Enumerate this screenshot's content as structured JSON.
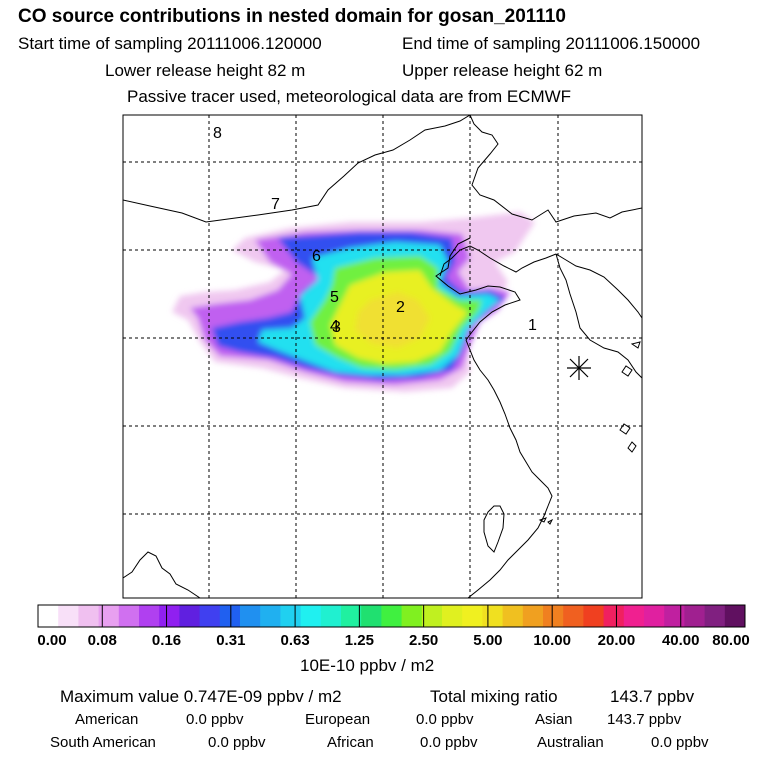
{
  "header": {
    "title": "CO  source contributions in nested domain for gosan_201110",
    "start_label": "Start time of sampling 20111006.120000",
    "end_label": "End time of sampling 20111006.150000",
    "lower_release": "Lower release height   82 m",
    "upper_release": "Upper release height   62 m",
    "tracer_note": "Passive tracer used, meteorological data are from ECMWF"
  },
  "map": {
    "trajectory_labels": [
      "8",
      "7",
      "6",
      "5",
      "2",
      "4",
      "3",
      "1"
    ],
    "receptor": "gosan station"
  },
  "colorbar": {
    "tick_labels": [
      "0.00",
      "0.08",
      "0.16",
      "0.31",
      "0.63",
      "1.25",
      "2.50",
      "5.00",
      "10.00",
      "20.00",
      "40.00",
      "80.00"
    ],
    "units": "10E-10 ppbv / m2",
    "colors": [
      "#ffffff",
      "#f8e0f8",
      "#f0c0f0",
      "#e8a0f0",
      "#d070f0",
      "#b040f0",
      "#9020f0",
      "#6020e0",
      "#4040f0",
      "#2060f0",
      "#2090f0",
      "#20b0f0",
      "#20d0f0",
      "#20f0f0",
      "#20f0d0",
      "#20f0a0",
      "#20e070",
      "#40f040",
      "#80f020",
      "#c0f020",
      "#e0f020",
      "#f0f020",
      "#f0e020",
      "#f0c020",
      "#f0a020",
      "#f08020",
      "#f06020",
      "#f04020",
      "#f02060",
      "#f02090",
      "#e020a0",
      "#c020a0",
      "#a02090",
      "#802080",
      "#601060"
    ]
  },
  "stats": {
    "max_label": "Maximum value  0.747E-09 ppbv / m2",
    "total_label": "Total mixing ratio",
    "total_value": "143.7 ppbv",
    "american_label": "American",
    "american_value": "0.0 ppbv",
    "european_label": "European",
    "european_value": "0.0 ppbv",
    "asian_label": "Asian",
    "asian_value": "143.7 ppbv",
    "south_american_label": "South American",
    "south_american_value": "0.0 ppbv",
    "african_label": "African",
    "african_value": "0.0 ppbv",
    "australian_label": "Australian",
    "australian_value": "0.0 ppbv"
  }
}
